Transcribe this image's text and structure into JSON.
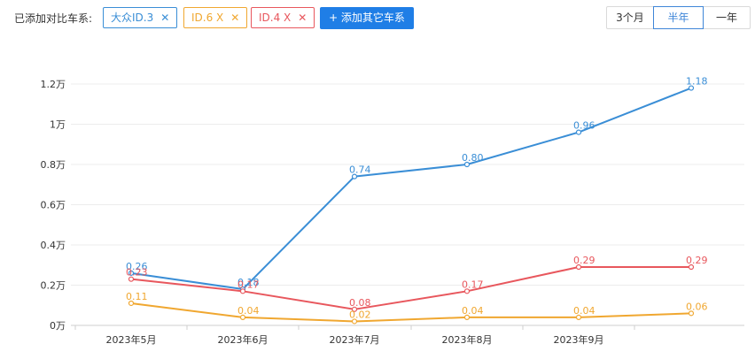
{
  "toolbar": {
    "label": "已添加对比车系:",
    "chips": [
      {
        "label": "大众ID.3",
        "close": "✕",
        "color": "#3a8ed6"
      },
      {
        "label": "ID.6 X",
        "close": "✕",
        "color": "#f0a730"
      },
      {
        "label": "ID.4 X",
        "close": "✕",
        "color": "#e8575d"
      }
    ],
    "add_button": "+ 添加其它车系",
    "range_options": [
      "3个月",
      "半年",
      "一年"
    ],
    "range_selected": "半年"
  },
  "chart_data": {
    "type": "line",
    "categories": [
      "2023年5月",
      "2023年6月",
      "2023年7月",
      "2023年8月",
      "2023年9月",
      ""
    ],
    "y_ticks": [
      "0万",
      "0.2万",
      "0.4万",
      "0.6万",
      "0.8万",
      "1万",
      "1.2万"
    ],
    "ylim": [
      0,
      1.2
    ],
    "grid": true,
    "series": [
      {
        "name": "大众ID.3",
        "color": "#3a8ed6",
        "values": [
          0.26,
          0.18,
          0.74,
          0.8,
          0.96,
          1.18
        ],
        "labels": [
          "0.26",
          "0.18",
          "0.74",
          "0.80",
          "0.96",
          "1.18"
        ]
      },
      {
        "name": "ID.4 X",
        "color": "#e8575d",
        "values": [
          0.23,
          0.17,
          0.08,
          0.17,
          0.29,
          0.29
        ],
        "labels": [
          "0.23",
          "0.17",
          "0.08",
          "0.17",
          "0.29",
          "0.29"
        ]
      },
      {
        "name": "ID.6 X",
        "color": "#f0a730",
        "values": [
          0.11,
          0.04,
          0.02,
          0.04,
          0.04,
          0.06
        ],
        "labels": [
          "0.11",
          "0.04",
          "0.02",
          "0.04",
          "0.04",
          "0.06"
        ]
      }
    ]
  }
}
